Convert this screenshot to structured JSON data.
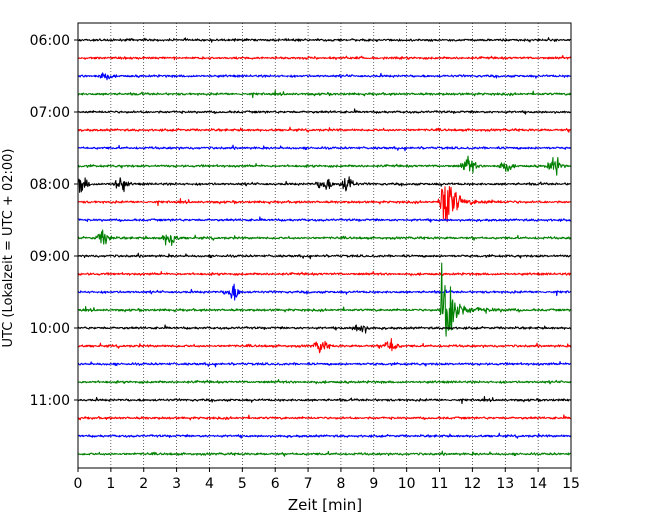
{
  "chart_data": {
    "type": "line",
    "subtype": "helicorder",
    "xlabel": "Zeit  [min]",
    "ylabel": "UTC (Lokalzeit = UTC + 02:00)",
    "xlim": [
      0,
      15
    ],
    "x_ticks": [
      "0",
      "1",
      "2",
      "3",
      "4",
      "5",
      "6",
      "7",
      "8",
      "9",
      "10",
      "11",
      "12",
      "13",
      "14",
      "15"
    ],
    "y_ticks": [
      "06:00",
      "07:00",
      "08:00",
      "09:00",
      "10:00",
      "11:00"
    ],
    "row_interval_min": 15,
    "start_time": "06:00",
    "rows": 24,
    "colors": [
      "#000000",
      "#ff0000",
      "#0000ff",
      "#008000"
    ],
    "grid": "vertical dotted lines at each minute",
    "events": [
      {
        "row_time": "06:30",
        "minute": 0.8,
        "amplitude": 0.4
      },
      {
        "row_time": "07:45",
        "minute": 11.9,
        "amplitude": 0.9
      },
      {
        "row_time": "07:45",
        "minute": 13.0,
        "amplitude": 0.6
      },
      {
        "row_time": "07:45",
        "minute": 14.5,
        "amplitude": 0.9
      },
      {
        "row_time": "08:00",
        "minute": 0.1,
        "amplitude": 0.9
      },
      {
        "row_time": "08:00",
        "minute": 1.3,
        "amplitude": 0.8
      },
      {
        "row_time": "08:00",
        "minute": 7.5,
        "amplitude": 0.8
      },
      {
        "row_time": "08:00",
        "minute": 8.2,
        "amplitude": 0.9
      },
      {
        "row_time": "08:45",
        "minute": 0.8,
        "amplitude": 0.8
      },
      {
        "row_time": "08:45",
        "minute": 2.8,
        "amplitude": 0.9
      },
      {
        "row_time": "09:30",
        "minute": 4.7,
        "amplitude": 0.9
      },
      {
        "row_time": "10:00",
        "minute": 8.6,
        "amplitude": 0.6
      },
      {
        "row_time": "10:15",
        "minute": 7.4,
        "amplitude": 0.7
      },
      {
        "row_time": "10:15",
        "minute": 9.5,
        "amplitude": 1.0
      },
      {
        "row_time": "08:15",
        "minute": 11.05,
        "amplitude": 5.0
      },
      {
        "row_time": "09:45",
        "minute": 11.05,
        "amplitude": 8.0
      }
    ]
  }
}
